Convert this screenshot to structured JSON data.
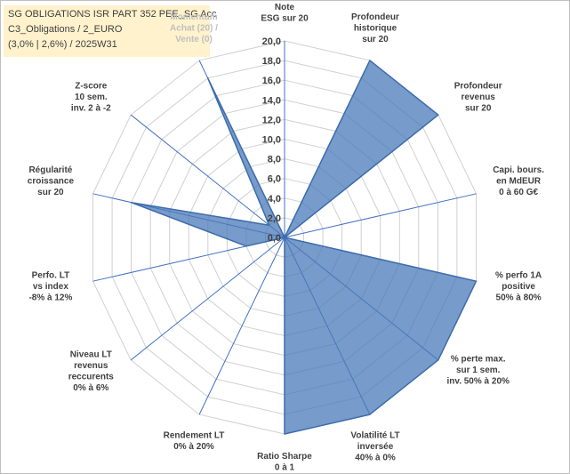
{
  "info": {
    "line1": "SG OBLIGATIONS ISR PART 352 PEE_SG Acc",
    "line2": "C3_Obligations / 2_EURO",
    "line3": "(3,0% | 2,6%) / 2025W31"
  },
  "colors": {
    "fill": "#4a7ab8",
    "fill_opacity": 0.75,
    "stroke": "#3d6cad",
    "spoke": "#4472c4",
    "ring": "#d0d0d0",
    "info_bg": "#fff2cc"
  },
  "chart_data": {
    "type": "radar",
    "rmin": 0,
    "rmax": 20,
    "ticks": [
      "0,0",
      "2,0",
      "4,0",
      "6,0",
      "8,0",
      "10,0",
      "12,0",
      "14,0",
      "16,0",
      "18,0",
      "20,0"
    ],
    "axes": [
      {
        "label": [
          "Note",
          "ESG sur 20"
        ],
        "value": 0
      },
      {
        "label": [
          "Profondeur",
          "historique",
          "sur 20"
        ],
        "value": 20
      },
      {
        "label": [
          "Profondeur",
          "revenus",
          "sur 20"
        ],
        "value": 20
      },
      {
        "label": [
          "Capi. bours.",
          "en MdEUR",
          "0 à 60 G€"
        ],
        "value": 0
      },
      {
        "label": [
          "% perfo 1A",
          "positive",
          "50% à 80%"
        ],
        "value": 20
      },
      {
        "label": [
          "% perte max.",
          "sur 1 sem.",
          "inv. 50% à 20%"
        ],
        "value": 20
      },
      {
        "label": [
          "Volatilité LT",
          "inversée",
          "40% à 0%"
        ],
        "value": 20
      },
      {
        "label": [
          "Ratio Sharpe",
          "0 à 1"
        ],
        "value": 20
      },
      {
        "label": [
          "Rendement LT",
          "0% à 20%"
        ],
        "value": 0
      },
      {
        "label": [
          "Niveau LT",
          "revenus",
          "reccurents",
          "0% à 6%"
        ],
        "value": 0
      },
      {
        "label": [
          "Perfo. LT",
          "vs index",
          "-8% à 12%"
        ],
        "value": 4
      },
      {
        "label": [
          "Régularité",
          "croissance",
          "sur 20"
        ],
        "value": 16
      },
      {
        "label": [
          "Z-score",
          "10 sem.",
          "inv. 2 à -2"
        ],
        "value": 2
      },
      {
        "label": [
          "Momentum",
          "Achat (20) /",
          "Vente (0)"
        ],
        "value": 18
      }
    ]
  }
}
